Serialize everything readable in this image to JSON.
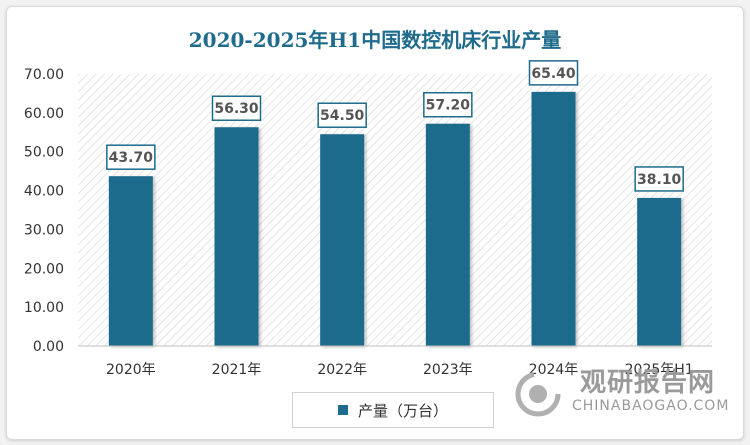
{
  "chart_data": {
    "type": "bar",
    "title": "2020-2025年H1中国数控机床行业产量",
    "categories": [
      "2020年",
      "2021年",
      "2022年",
      "2023年",
      "2024年",
      "2025年H1"
    ],
    "series": [
      {
        "name": "产量（万台）",
        "values": [
          43.7,
          56.3,
          54.5,
          57.2,
          65.4,
          38.1
        ]
      }
    ],
    "ylim": [
      0,
      70
    ],
    "yticks": [
      "0.00",
      "10.00",
      "20.00",
      "30.00",
      "40.00",
      "50.00",
      "60.00",
      "70.00"
    ],
    "data_labels": [
      "43.70",
      "56.30",
      "54.50",
      "57.20",
      "65.40",
      "38.10"
    ],
    "legend_position": "bottom",
    "grid": false,
    "bar_color": "#1e6b8c"
  },
  "watermark": {
    "main": "观研报告网",
    "sub": "CHINABAOGAO.COM"
  }
}
